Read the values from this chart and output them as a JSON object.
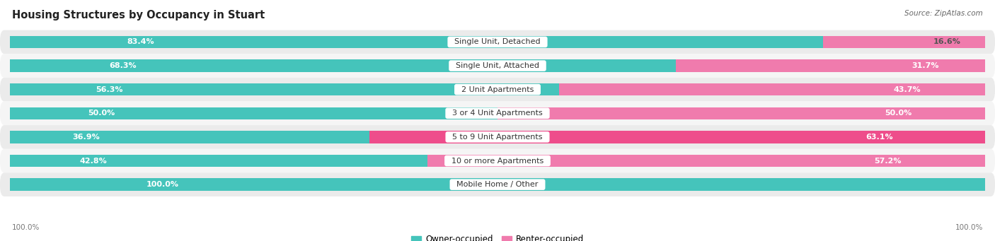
{
  "title": "Housing Structures by Occupancy in Stuart",
  "source": "Source: ZipAtlas.com",
  "categories": [
    "Single Unit, Detached",
    "Single Unit, Attached",
    "2 Unit Apartments",
    "3 or 4 Unit Apartments",
    "5 to 9 Unit Apartments",
    "10 or more Apartments",
    "Mobile Home / Other"
  ],
  "owner_pct": [
    83.4,
    68.3,
    56.3,
    50.0,
    36.9,
    42.8,
    100.0
  ],
  "renter_pct": [
    16.6,
    31.7,
    43.7,
    50.0,
    63.1,
    57.2,
    0.0
  ],
  "owner_color": "#45C4BB",
  "renter_color": "#F07BAD",
  "renter_color_bright": "#EE4D8B",
  "bg_row_light": "#ebebeb",
  "bg_row_lighter": "#f5f5f5",
  "title_fontsize": 10.5,
  "label_fontsize": 8.0,
  "legend_fontsize": 8.5,
  "source_fontsize": 7.5,
  "bar_height": 0.52,
  "owner_label_inside_threshold": 8,
  "renter_label_inside_threshold": 5
}
